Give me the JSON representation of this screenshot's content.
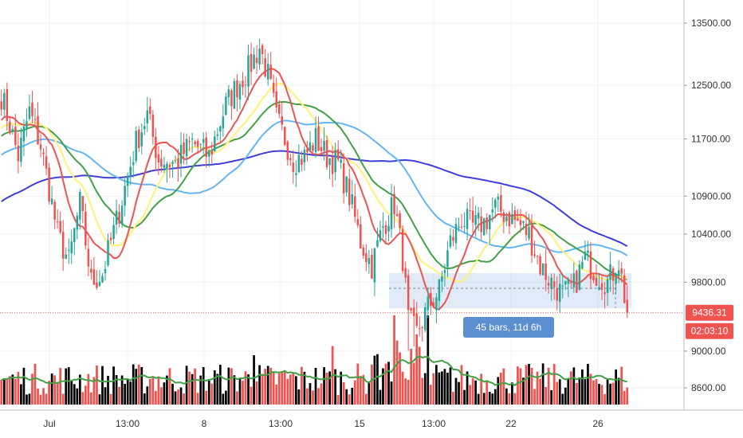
{
  "chart_data": {
    "type": "candlestick",
    "price_axis": {
      "ticks": [
        13500,
        12500,
        11700,
        10900,
        10400,
        9800,
        9000,
        8600
      ],
      "tick_labels": [
        "13500.00",
        "12500.00",
        "11700.00",
        "10900.00",
        "10400.00",
        "9800.00",
        "9000.00",
        "8600.00"
      ],
      "scale": "log"
    },
    "time_axis": {
      "labels": [
        "Jul",
        "13:00",
        "8",
        "13:00",
        "15",
        "13:00",
        "22",
        "26"
      ]
    },
    "last_price": {
      "value": 9436.31,
      "label": "9436.31",
      "color": "#ef5350"
    },
    "countdown": {
      "label": "02:03:10",
      "color": "#ef5350"
    },
    "measurement": {
      "label": "45 bars, 11d 6h",
      "color": "#5b8fd0"
    },
    "colors": {
      "up": "#26a69a",
      "down": "#ef5350",
      "volume_up": "#000000",
      "volume_down": "#ef5350",
      "ma_red": "#ef5350",
      "ma_yellow": "#fff176",
      "ma_green": "#43a047",
      "ma_lightblue": "#64b5f6",
      "ma_blue": "#3f3fd6",
      "volume_ma": "#43a047"
    },
    "ohlc_keypoints": [
      [
        0,
        12350
      ],
      [
        6,
        11450
      ],
      [
        10,
        12100
      ],
      [
        14,
        11600
      ],
      [
        20,
        10400
      ],
      [
        24,
        10050
      ],
      [
        28,
        10800
      ],
      [
        32,
        9800
      ],
      [
        36,
        9900
      ],
      [
        42,
        10700
      ],
      [
        48,
        11650
      ],
      [
        52,
        12050
      ],
      [
        56,
        11400
      ],
      [
        62,
        11350
      ],
      [
        68,
        11650
      ],
      [
        74,
        11450
      ],
      [
        80,
        12200
      ],
      [
        84,
        12500
      ],
      [
        88,
        12750
      ],
      [
        92,
        13100
      ],
      [
        95,
        12650
      ],
      [
        98,
        12000
      ],
      [
        104,
        11400
      ],
      [
        108,
        11450
      ],
      [
        112,
        11700
      ],
      [
        116,
        11450
      ],
      [
        120,
        11350
      ],
      [
        124,
        10900
      ],
      [
        128,
        10300
      ],
      [
        132,
        10000
      ],
      [
        136,
        10500
      ],
      [
        140,
        10800
      ],
      [
        143,
        10100
      ],
      [
        145,
        9350
      ],
      [
        148,
        9200
      ],
      [
        152,
        9500
      ],
      [
        156,
        9700
      ],
      [
        160,
        10300
      ],
      [
        164,
        10600
      ],
      [
        168,
        10500
      ],
      [
        172,
        10550
      ],
      [
        176,
        10750
      ],
      [
        180,
        10650
      ],
      [
        184,
        10550
      ],
      [
        188,
        10400
      ],
      [
        192,
        10000
      ],
      [
        196,
        9800
      ],
      [
        200,
        9650
      ],
      [
        204,
        9750
      ],
      [
        208,
        10100
      ],
      [
        212,
        9900
      ],
      [
        216,
        9800
      ],
      [
        220,
        10050
      ],
      [
        223,
        9436
      ]
    ],
    "ma_periods": {
      "ma_red": 12,
      "ma_yellow": 22,
      "ma_green": 32,
      "ma_lightblue": 55,
      "ma_blue": 110,
      "volume_ma": 12
    },
    "volume_seed": 7
  }
}
